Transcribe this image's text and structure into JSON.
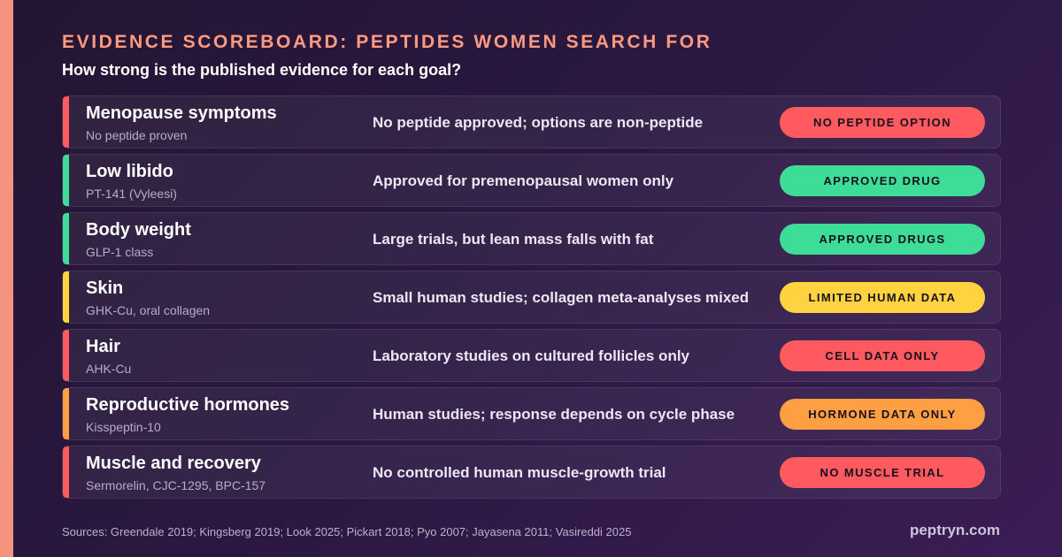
{
  "header": {
    "title": "EVIDENCE SCOREBOARD: PEPTIDES WOMEN SEARCH FOR",
    "subtitle": "How strong is the published evidence for each goal?"
  },
  "colors": {
    "red": "#ff5a5f",
    "green": "#3ddc97",
    "yellow": "#ffd23f",
    "orange": "#ff9f43",
    "title": "#ff9a80",
    "background": "#2a1840"
  },
  "rows": [
    {
      "goal": "Menopause symptoms",
      "peptide": "No peptide proven",
      "evidence": "No peptide approved; options are non-peptide",
      "badge": "NO PEPTIDE OPTION",
      "status": "red"
    },
    {
      "goal": "Low libido",
      "peptide": "PT-141 (Vyleesi)",
      "evidence": "Approved for premenopausal women only",
      "badge": "APPROVED DRUG",
      "status": "green"
    },
    {
      "goal": "Body weight",
      "peptide": "GLP-1 class",
      "evidence": "Large trials, but lean mass falls with fat",
      "badge": "APPROVED DRUGS",
      "status": "green"
    },
    {
      "goal": "Skin",
      "peptide": "GHK-Cu, oral collagen",
      "evidence": "Small human studies; collagen meta-analyses mixed",
      "badge": "LIMITED HUMAN DATA",
      "status": "yellow"
    },
    {
      "goal": "Hair",
      "peptide": "AHK-Cu",
      "evidence": "Laboratory studies on cultured follicles only",
      "badge": "CELL DATA ONLY",
      "status": "red"
    },
    {
      "goal": "Reproductive hormones",
      "peptide": "Kisspeptin-10",
      "evidence": "Human studies; response depends on cycle phase",
      "badge": "HORMONE DATA ONLY",
      "status": "orange"
    },
    {
      "goal": "Muscle and recovery",
      "peptide": "Sermorelin, CJC-1295, BPC-157",
      "evidence": "No controlled human muscle-growth trial",
      "badge": "NO MUSCLE TRIAL",
      "status": "red"
    }
  ],
  "footer": {
    "sources": "Sources: Greendale 2019; Kingsberg 2019; Look 2025; Pickart 2018; Pyo 2007; Jayasena 2011; Vasireddi 2025",
    "brand": "peptryn.com"
  }
}
